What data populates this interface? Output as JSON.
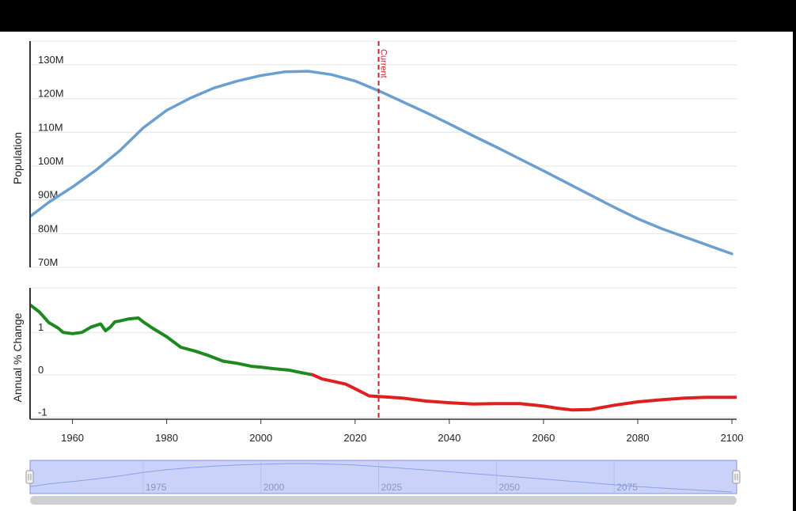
{
  "chart_data": [
    {
      "type": "line",
      "ylabel": "Population",
      "yticks": [
        "70M",
        "80M",
        "90M",
        "100M",
        "110M",
        "120M",
        "130M"
      ],
      "ylim": [
        70000000,
        137000000
      ],
      "xlim": [
        1951,
        2101
      ],
      "grid": true,
      "series": [
        {
          "color": "#6a9fd0",
          "x": [
            1950,
            1955,
            1960,
            1965,
            1970,
            1975,
            1980,
            1985,
            1990,
            1995,
            2000,
            2005,
            2010,
            2015,
            2020,
            2025,
            2030,
            2035,
            2040,
            2045,
            2050,
            2055,
            2060,
            2065,
            2070,
            2075,
            2080,
            2085,
            2090,
            2095,
            2100
          ],
          "y": [
            84000000,
            89300000,
            93800000,
            98800000,
            104500000,
            111300000,
            116500000,
            120100000,
            123100000,
            125200000,
            126800000,
            127900000,
            128100000,
            127100000,
            125200000,
            122300000,
            119100000,
            115900000,
            112500000,
            109000000,
            105600000,
            102100000,
            98600000,
            95000000,
            91400000,
            87800000,
            84400000,
            81500000,
            79000000,
            76500000,
            74000000
          ]
        }
      ]
    },
    {
      "type": "line",
      "ylabel": "Annual % Change",
      "yticks": [
        "1",
        "0",
        "-1"
      ],
      "ylim": [
        -1.05,
        2.05
      ],
      "xlim": [
        1951,
        2101
      ],
      "xticks": [
        "1960",
        "1980",
        "2000",
        "2020",
        "2040",
        "2060",
        "2080",
        "2100"
      ],
      "grid": true,
      "series": [
        {
          "color": "#1e8a1e",
          "x": [
            1951,
            1953,
            1955,
            1957,
            1958,
            1960,
            1962,
            1964,
            1966,
            1967,
            1968,
            1969,
            1970,
            1972,
            1974,
            1975,
            1977,
            1980,
            1983,
            1986,
            1989,
            1992,
            1995,
            1998,
            2000,
            2003,
            2006,
            2009,
            2011
          ],
          "y": [
            1.65,
            1.48,
            1.23,
            1.1,
            1.0,
            0.97,
            1.0,
            1.13,
            1.2,
            1.04,
            1.12,
            1.25,
            1.27,
            1.32,
            1.34,
            1.25,
            1.1,
            0.9,
            0.65,
            0.56,
            0.45,
            0.32,
            0.27,
            0.2,
            0.18,
            0.14,
            0.11,
            0.04,
            0.0
          ]
        },
        {
          "color": "#e02020",
          "x": [
            2011,
            2013,
            2016,
            2018,
            2020,
            2023,
            2026,
            2030,
            2035,
            2040,
            2045,
            2050,
            2055,
            2060,
            2063,
            2066,
            2070,
            2075,
            2080,
            2085,
            2090,
            2095,
            2101
          ],
          "y": [
            0.0,
            -0.1,
            -0.17,
            -0.22,
            -0.33,
            -0.5,
            -0.52,
            -0.55,
            -0.62,
            -0.66,
            -0.69,
            -0.68,
            -0.68,
            -0.74,
            -0.79,
            -0.83,
            -0.82,
            -0.72,
            -0.64,
            -0.59,
            -0.55,
            -0.53,
            -0.53
          ]
        }
      ]
    }
  ],
  "current_marker": {
    "year": 2025,
    "label": "Current",
    "color": "#c0282f"
  },
  "navigator": {
    "labels": [
      "1975",
      "2000",
      "2025",
      "2050",
      "2075"
    ]
  }
}
